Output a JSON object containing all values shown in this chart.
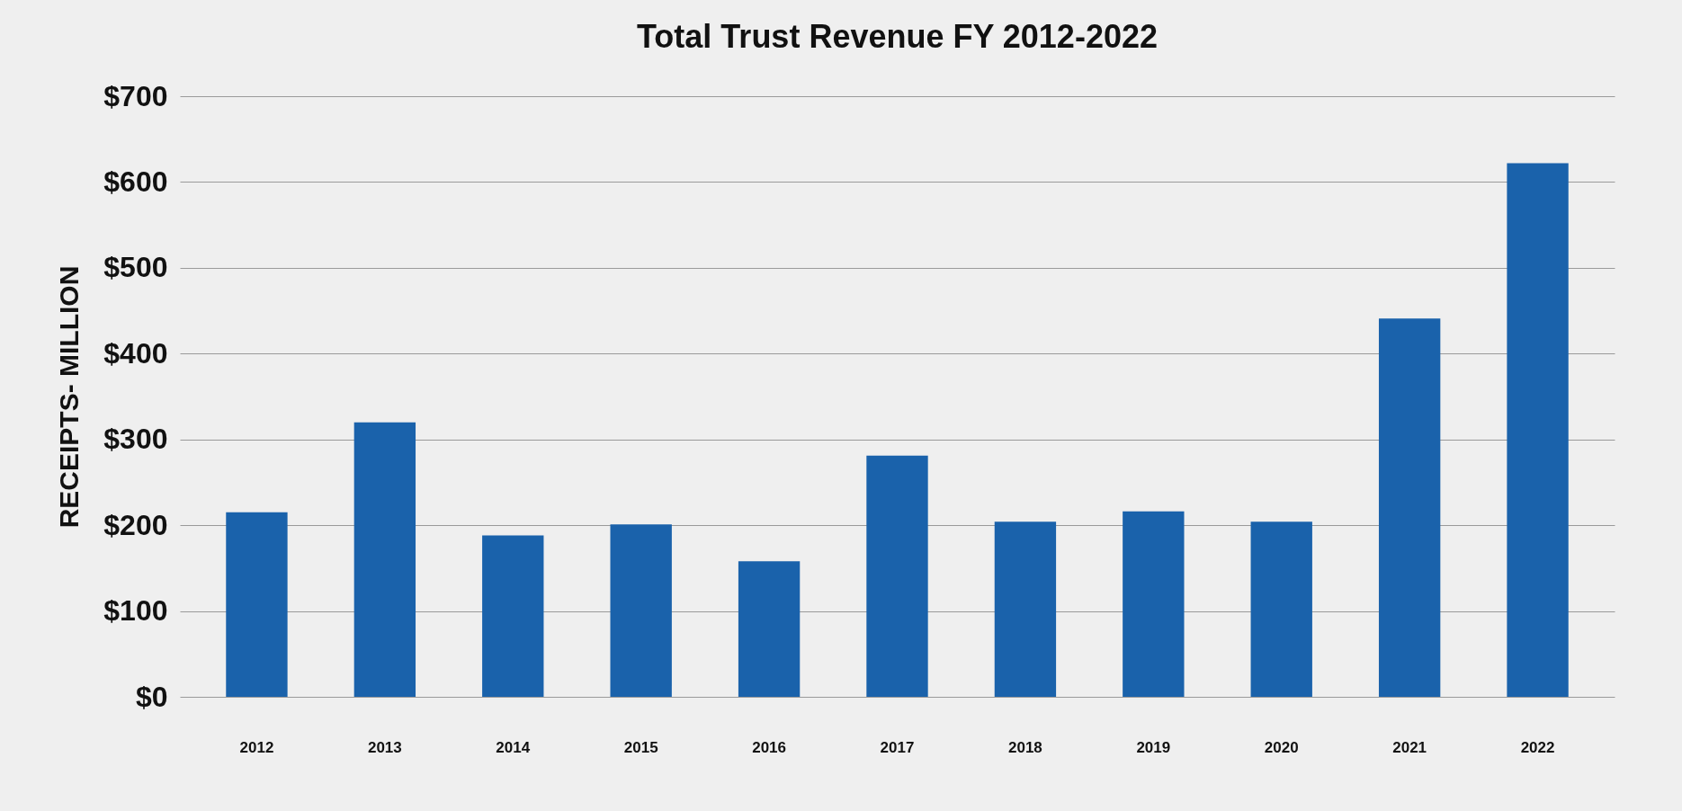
{
  "chart_data": {
    "type": "bar",
    "title": "Total Trust Revenue FY 2012-2022",
    "ylabel": "RECEIPTS- MILLION",
    "categories": [
      "2012",
      "2013",
      "2014",
      "2015",
      "2016",
      "2017",
      "2018",
      "2019",
      "2020",
      "2021",
      "2022"
    ],
    "values": [
      215,
      320,
      188,
      201,
      158,
      281,
      204,
      216,
      204,
      441,
      622
    ],
    "color": "#1a62ab",
    "ylim": [
      0,
      700
    ],
    "yticks": [
      {
        "value": 0,
        "label": "$0"
      },
      {
        "value": 100,
        "label": "$100"
      },
      {
        "value": 200,
        "label": "$200"
      },
      {
        "value": 300,
        "label": "$300"
      },
      {
        "value": 400,
        "label": "$400"
      },
      {
        "value": 500,
        "label": "$500"
      },
      {
        "value": 600,
        "label": "$600"
      },
      {
        "value": 700,
        "label": "$700"
      }
    ],
    "grid": "y"
  }
}
